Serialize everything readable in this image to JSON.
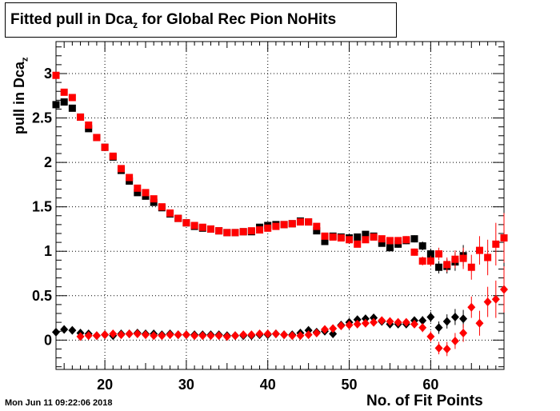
{
  "title": {
    "prefix": "Fitted pull in Dca",
    "sub": "z",
    "suffix": " for Global Rec Pion NoHits"
  },
  "timestamp": "Mon Jun 11 09:22:06 2018",
  "chart_data": {
    "type": "scatter",
    "xlabel": "No. of Fit Points",
    "ylabel_main": "pull in Dca",
    "ylabel_sub": "z",
    "xlim": [
      14,
      69
    ],
    "ylim": [
      -0.33,
      3.36
    ],
    "x_ticks": [
      20,
      30,
      40,
      50,
      60
    ],
    "y_ticks": [
      0,
      0.5,
      1,
      1.5,
      2,
      2.5,
      3
    ],
    "y_tick_labels": [
      "0",
      "0.5",
      "1",
      "1.5",
      "2",
      "2.5",
      "3"
    ],
    "grid": true,
    "series": [
      {
        "marker": "square",
        "color": "#000000",
        "x": [
          14,
          15,
          16,
          17,
          18,
          19,
          20,
          21,
          22,
          23,
          24,
          25,
          26,
          27,
          28,
          29,
          30,
          31,
          32,
          33,
          34,
          35,
          36,
          37,
          38,
          39,
          40,
          41,
          42,
          43,
          44,
          45,
          46,
          47,
          48,
          49,
          50,
          51,
          52,
          53,
          54,
          55,
          56,
          57,
          58,
          59,
          60,
          61,
          62,
          63,
          64
        ],
        "y": [
          2.65,
          2.68,
          2.61,
          2.51,
          2.38,
          2.28,
          2.17,
          2.06,
          1.91,
          1.79,
          1.66,
          1.62,
          1.55,
          1.49,
          1.42,
          1.37,
          1.32,
          1.28,
          1.26,
          1.25,
          1.23,
          1.21,
          1.21,
          1.22,
          1.22,
          1.27,
          1.29,
          1.3,
          1.3,
          1.31,
          1.34,
          1.33,
          1.23,
          1.11,
          1.17,
          1.16,
          1.15,
          1.16,
          1.19,
          1.17,
          1.09,
          1.04,
          1.08,
          1.12,
          1.14,
          1.06,
          0.97,
          0.82,
          0.83,
          0.88,
          0.95
        ],
        "err": [
          0.03,
          0.03,
          0.03,
          0.02,
          0.02,
          0.02,
          0.02,
          0.02,
          0.02,
          0.02,
          0.02,
          0.02,
          0.02,
          0.02,
          0.02,
          0.02,
          0.02,
          0.02,
          0.02,
          0.02,
          0.02,
          0.02,
          0.02,
          0.02,
          0.02,
          0.02,
          0.02,
          0.02,
          0.02,
          0.02,
          0.02,
          0.02,
          0.03,
          0.03,
          0.03,
          0.03,
          0.03,
          0.03,
          0.03,
          0.03,
          0.03,
          0.03,
          0.04,
          0.04,
          0.04,
          0.05,
          0.06,
          0.07,
          0.08,
          0.1,
          0.12
        ]
      },
      {
        "marker": "square",
        "color": "#ff0000",
        "x": [
          14,
          15,
          16,
          17,
          18,
          19,
          20,
          21,
          22,
          23,
          24,
          25,
          26,
          27,
          28,
          29,
          30,
          31,
          32,
          33,
          34,
          35,
          36,
          37,
          38,
          39,
          40,
          41,
          42,
          43,
          44,
          45,
          46,
          47,
          48,
          49,
          50,
          51,
          52,
          53,
          54,
          55,
          56,
          57,
          58,
          59,
          60,
          61,
          62,
          63,
          64,
          65,
          66,
          67,
          68,
          69
        ],
        "y": [
          2.98,
          2.79,
          2.73,
          2.51,
          2.42,
          2.28,
          2.17,
          2.07,
          1.93,
          1.83,
          1.71,
          1.66,
          1.59,
          1.5,
          1.43,
          1.37,
          1.32,
          1.29,
          1.27,
          1.25,
          1.23,
          1.21,
          1.21,
          1.22,
          1.23,
          1.24,
          1.26,
          1.28,
          1.3,
          1.31,
          1.33,
          1.33,
          1.28,
          1.17,
          1.16,
          1.15,
          1.13,
          1.08,
          1.13,
          1.16,
          1.14,
          1.12,
          1.12,
          1.13,
          0.99,
          0.89,
          0.89,
          0.97,
          0.85,
          0.91,
          0.92,
          0.82,
          1.01,
          0.93,
          1.08,
          1.15
        ],
        "err": [
          0.03,
          0.03,
          0.03,
          0.02,
          0.02,
          0.02,
          0.02,
          0.02,
          0.02,
          0.02,
          0.02,
          0.02,
          0.02,
          0.02,
          0.02,
          0.02,
          0.02,
          0.02,
          0.02,
          0.02,
          0.02,
          0.02,
          0.02,
          0.02,
          0.02,
          0.02,
          0.02,
          0.02,
          0.02,
          0.02,
          0.02,
          0.02,
          0.03,
          0.03,
          0.03,
          0.03,
          0.03,
          0.03,
          0.03,
          0.03,
          0.03,
          0.03,
          0.04,
          0.04,
          0.04,
          0.05,
          0.06,
          0.07,
          0.08,
          0.1,
          0.12,
          0.14,
          0.16,
          0.2,
          0.24,
          0.28
        ]
      },
      {
        "marker": "diamond",
        "color": "#000000",
        "x": [
          14,
          15,
          16,
          17,
          18,
          19,
          20,
          21,
          22,
          23,
          24,
          25,
          26,
          27,
          28,
          29,
          30,
          31,
          32,
          33,
          34,
          35,
          36,
          37,
          38,
          39,
          40,
          41,
          42,
          43,
          44,
          45,
          46,
          47,
          48,
          49,
          50,
          51,
          52,
          53,
          54,
          55,
          56,
          57,
          58,
          59,
          60,
          61,
          62,
          63,
          64
        ],
        "y": [
          0.09,
          0.12,
          0.11,
          0.08,
          0.07,
          0.05,
          0.06,
          0.05,
          0.07,
          0.07,
          0.08,
          0.07,
          0.07,
          0.06,
          0.07,
          0.06,
          0.06,
          0.06,
          0.06,
          0.06,
          0.06,
          0.05,
          0.05,
          0.05,
          0.05,
          0.06,
          0.06,
          0.07,
          0.06,
          0.06,
          0.08,
          0.11,
          0.09,
          0.1,
          0.07,
          0.17,
          0.2,
          0.23,
          0.24,
          0.25,
          0.21,
          0.18,
          0.18,
          0.18,
          0.22,
          0.22,
          0.26,
          0.14,
          0.21,
          0.26,
          0.24
        ],
        "err": [
          0.02,
          0.02,
          0.02,
          0.02,
          0.02,
          0.02,
          0.02,
          0.02,
          0.02,
          0.02,
          0.02,
          0.02,
          0.02,
          0.02,
          0.02,
          0.02,
          0.02,
          0.02,
          0.02,
          0.02,
          0.02,
          0.02,
          0.02,
          0.02,
          0.02,
          0.02,
          0.02,
          0.02,
          0.02,
          0.02,
          0.02,
          0.02,
          0.02,
          0.03,
          0.03,
          0.03,
          0.03,
          0.03,
          0.03,
          0.03,
          0.03,
          0.03,
          0.03,
          0.04,
          0.04,
          0.05,
          0.06,
          0.07,
          0.08,
          0.09,
          0.1
        ]
      },
      {
        "marker": "diamond",
        "color": "#ff0000",
        "x": [
          17,
          18,
          19,
          20,
          21,
          22,
          23,
          24,
          25,
          26,
          27,
          28,
          29,
          30,
          31,
          32,
          33,
          34,
          35,
          36,
          37,
          38,
          39,
          40,
          41,
          42,
          43,
          44,
          45,
          46,
          47,
          48,
          49,
          50,
          51,
          52,
          53,
          54,
          55,
          56,
          57,
          58,
          59,
          60,
          61,
          62,
          63,
          64,
          65,
          66,
          67,
          68,
          69
        ],
        "y": [
          0.04,
          0.05,
          0.05,
          0.06,
          0.07,
          0.06,
          0.07,
          0.07,
          0.06,
          0.05,
          0.05,
          0.06,
          0.06,
          0.06,
          0.05,
          0.05,
          0.05,
          0.05,
          0.04,
          0.05,
          0.06,
          0.06,
          0.07,
          0.07,
          0.07,
          0.06,
          0.05,
          0.05,
          0.06,
          0.08,
          0.12,
          0.13,
          0.16,
          0.17,
          0.18,
          0.19,
          0.2,
          0.22,
          0.21,
          0.2,
          0.2,
          0.18,
          0.14,
          0.04,
          -0.09,
          -0.1,
          -0.01,
          0.08,
          0.37,
          0.19,
          0.43,
          0.46,
          0.57
        ],
        "err": [
          0.02,
          0.02,
          0.02,
          0.02,
          0.02,
          0.02,
          0.02,
          0.02,
          0.02,
          0.02,
          0.02,
          0.02,
          0.02,
          0.02,
          0.02,
          0.02,
          0.02,
          0.02,
          0.02,
          0.02,
          0.02,
          0.02,
          0.02,
          0.02,
          0.02,
          0.02,
          0.02,
          0.02,
          0.02,
          0.02,
          0.03,
          0.03,
          0.03,
          0.03,
          0.03,
          0.03,
          0.03,
          0.03,
          0.03,
          0.04,
          0.04,
          0.04,
          0.05,
          0.06,
          0.07,
          0.08,
          0.09,
          0.1,
          0.12,
          0.14,
          0.17,
          0.21,
          0.26
        ]
      }
    ]
  }
}
